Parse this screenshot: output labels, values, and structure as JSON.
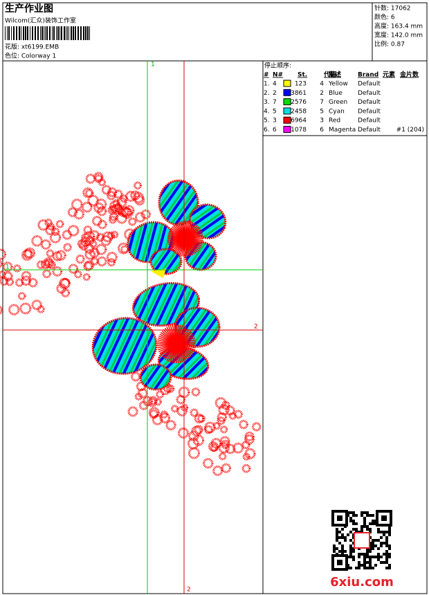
{
  "header": {
    "title": "生产作业图",
    "studio": "Wilcom(汇众)装饰工作室",
    "design": "花版: xt6199.EMB",
    "colorway": "色位: Colorway 1"
  },
  "stats": [
    "针数: 17062",
    "颜色: 6",
    "高度: 163.4 mm",
    "宽度: 142.0 mm",
    "比例: 0.87"
  ],
  "guides": {
    "green": "1",
    "red": "2"
  },
  "stop_sequence": {
    "title": "停止顺序:",
    "columns": [
      "#",
      "N#",
      "St.",
      "代码",
      "描述",
      "Brand",
      "元素",
      "金片数"
    ],
    "rows": [
      {
        "index": "1.",
        "n": 4,
        "color": "#ffff00",
        "stitches": 123,
        "code": 4,
        "description": "Yellow",
        "brand": "Default"
      },
      {
        "index": "2.",
        "n": 2,
        "color": "#0000ff",
        "stitches": 3861,
        "code": 2,
        "description": "Blue",
        "brand": "Default"
      },
      {
        "index": "3.",
        "n": 7,
        "color": "#00dd00",
        "stitches": 2576,
        "code": 7,
        "description": "Green",
        "brand": "Default"
      },
      {
        "index": "4.",
        "n": 5,
        "color": "#00e0e0",
        "stitches": 2458,
        "code": 5,
        "description": "Cyan",
        "brand": "Default"
      },
      {
        "index": "5.",
        "n": 3,
        "color": "#ff0000",
        "stitches": 6964,
        "code": 3,
        "description": "Red",
        "brand": "Default"
      },
      {
        "index": "6.",
        "n": 6,
        "color": "#ff00ff",
        "stitches": 1078,
        "code": 6,
        "description": "Magenta",
        "brand": "Default",
        "sequins": "#1 (204)"
      }
    ]
  },
  "watermark": "6xiu.com"
}
